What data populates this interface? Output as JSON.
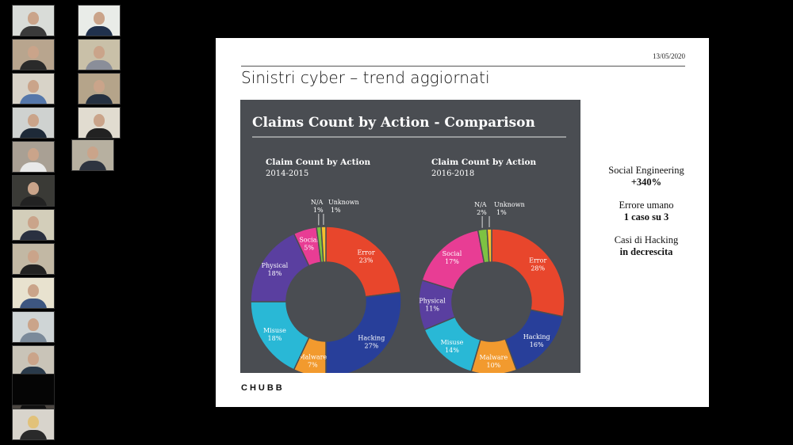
{
  "participants": [
    {
      "bg": "#d9dcd8",
      "shirt": "#3a3a3a"
    },
    {
      "bg": "#e9ece8",
      "shirt": "#20314d"
    },
    {
      "bg": "#b8a58e",
      "shirt": "#2a2a2a"
    },
    {
      "bg": "#c9c0a8",
      "shirt": "#8a8e99"
    },
    {
      "bg": "#d8d3c8",
      "shirt": "#5577aa"
    },
    {
      "bg": "#b5a48a",
      "shirt": "#253040"
    },
    {
      "bg": "#cfd2d0",
      "shirt": "#1e2a38"
    },
    {
      "bg": "#e1dcd0",
      "shirt": "#222"
    },
    {
      "bg": "#a9a094",
      "shirt": "#e9e9e9"
    },
    {
      "bg": "#b7b0a0",
      "shirt": "#2e3440"
    },
    {
      "bg": "#3a3a36",
      "shirt": "#222"
    },
    {
      "bg": "#d3ceba",
      "shirt": "#2a3040"
    },
    {
      "bg": "#c2b8a4",
      "shirt": "#222"
    },
    {
      "bg": "#e8e2cf",
      "shirt": "#3d5680"
    },
    {
      "bg": "#cfd5d6",
      "shirt": "#7b8a9a"
    },
    {
      "bg": "#c9c4b8",
      "shirt": "#2a3a4a"
    },
    {
      "bg": "#4a4540",
      "shirt": "#111"
    },
    {
      "bg": "#3a3833",
      "shirt": "#1a1a1a"
    }
  ],
  "slide": {
    "date": "13/05/2020",
    "title": "Sinistri cyber – trend aggiornati",
    "logo": "CHUBB"
  },
  "panel": {
    "title": "Claims Count by Action - Comparison"
  },
  "stats": [
    {
      "label": "Social Engineering",
      "value": "+340%"
    },
    {
      "label": "Errore umano",
      "value": "1 caso su 3"
    },
    {
      "label": "Casi di Hacking",
      "value": "in decrescita"
    }
  ],
  "chart_data": [
    {
      "type": "pie",
      "title": "Claim Count by Action",
      "subtitle": "2014-2015",
      "slices": [
        {
          "name": "Error",
          "value": 23,
          "label": "23%",
          "color": "#e8462c"
        },
        {
          "name": "Hacking",
          "value": 27,
          "label": "27%",
          "color": "#283f9a"
        },
        {
          "name": "Malware",
          "value": 7,
          "label": "7%",
          "color": "#f29a2e"
        },
        {
          "name": "Misuse",
          "value": 18,
          "label": "18%",
          "color": "#29b8d6"
        },
        {
          "name": "Physical",
          "value": 18,
          "label": "18%",
          "color": "#5a3fa0"
        },
        {
          "name": "Social",
          "value": 5,
          "label": "5%",
          "color": "#e83d94"
        },
        {
          "name": "N/A",
          "value": 1,
          "label": "1%",
          "color": "#7dc242"
        },
        {
          "name": "Unknown",
          "value": 1,
          "label": "1%",
          "color": "#f5c02e"
        }
      ]
    },
    {
      "type": "pie",
      "title": "Claim Count by Action",
      "subtitle": "2016-2018",
      "slices": [
        {
          "name": "Error",
          "value": 28,
          "label": "28%",
          "color": "#e8462c"
        },
        {
          "name": "Hacking",
          "value": 16,
          "label": "16%",
          "color": "#283f9a"
        },
        {
          "name": "Malware",
          "value": 10,
          "label": "10%",
          "color": "#f29a2e"
        },
        {
          "name": "Misuse",
          "value": 14,
          "label": "14%",
          "color": "#29b8d6"
        },
        {
          "name": "Physical",
          "value": 11,
          "label": "11%",
          "color": "#5a3fa0"
        },
        {
          "name": "Social",
          "value": 17,
          "label": "17%",
          "color": "#e83d94"
        },
        {
          "name": "N/A",
          "value": 2,
          "label": "2%",
          "color": "#7dc242"
        },
        {
          "name": "Unknown",
          "value": 1,
          "label": "1%",
          "color": "#f5c02e"
        }
      ]
    }
  ]
}
